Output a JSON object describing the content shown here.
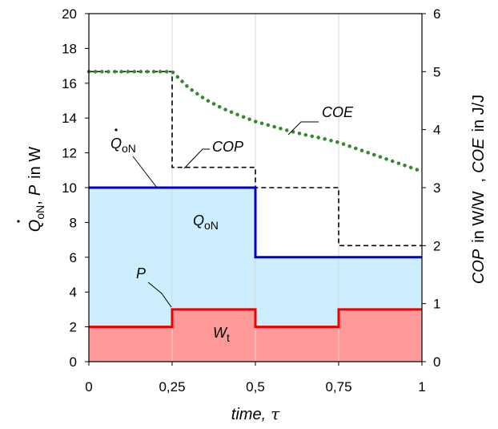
{
  "chart_data": {
    "type": "line",
    "x_label": {
      "text": "time,",
      "symbol": "τ"
    },
    "y_left_label": {
      "qdot": "Q",
      "qdot_sub": "oN",
      "sep": ",",
      "p": "P",
      "unit": "in  W"
    },
    "y_right_label": {
      "cop": "COP",
      "cop_unit": "in W/W",
      "sep": ",",
      "coe": "COE",
      "coe_unit": "in J/J"
    },
    "xlim": [
      0,
      1
    ],
    "ylim_left": [
      0,
      20
    ],
    "ylim_right": [
      0,
      6
    ],
    "x_ticks": [
      {
        "value": 0,
        "label": "0"
      },
      {
        "value": 0.25,
        "label": "0,25"
      },
      {
        "value": 0.5,
        "label": "0,5"
      },
      {
        "value": 0.75,
        "label": "0,75"
      },
      {
        "value": 1,
        "label": "1"
      }
    ],
    "y_left_ticks": [
      "0",
      "2",
      "4",
      "6",
      "8",
      "10",
      "12",
      "14",
      "16",
      "18",
      "20"
    ],
    "y_right_ticks": [
      "0",
      "1",
      "2",
      "3",
      "4",
      "5",
      "6"
    ],
    "series": [
      {
        "name": "Q̇oN",
        "axis": "left",
        "style": "step",
        "color": "#0000cc",
        "x": [
          0,
          0.5,
          0.5,
          1
        ],
        "y": [
          10,
          10,
          6,
          6
        ]
      },
      {
        "name": "P",
        "axis": "left",
        "style": "step",
        "color": "#ee0000",
        "x": [
          0,
          0.25,
          0.25,
          0.5,
          0.5,
          0.75,
          0.75,
          1
        ],
        "y": [
          2,
          2,
          3,
          3,
          2,
          2,
          3,
          3
        ]
      },
      {
        "name": "COP",
        "axis": "right",
        "style": "dashed-step",
        "color": "#000000",
        "x": [
          0,
          0.25,
          0.25,
          0.5,
          0.5,
          0.75,
          0.75,
          1
        ],
        "y": [
          5.0,
          5.0,
          3.35,
          3.35,
          3.0,
          3.0,
          2.0,
          2.0
        ]
      },
      {
        "name": "COE",
        "axis": "right",
        "style": "dotted",
        "color": "#2e8b2e",
        "x": [
          0,
          0.25,
          0.3,
          0.35,
          0.4,
          0.45,
          0.5,
          0.55,
          0.6,
          0.65,
          0.7,
          0.75,
          0.8,
          0.85,
          0.9,
          0.95,
          1.0
        ],
        "y": [
          5.0,
          5.0,
          4.72,
          4.52,
          4.37,
          4.25,
          4.14,
          4.06,
          3.98,
          3.91,
          3.85,
          3.78,
          3.68,
          3.58,
          3.48,
          3.38,
          3.28
        ]
      }
    ],
    "areas": [
      {
        "label": "Q",
        "label_sub": "oN",
        "color": "#cceeff"
      },
      {
        "label": "W",
        "label_sub": "t",
        "color": "#ff9999"
      }
    ],
    "annotations": {
      "coe": "COE",
      "cop": "COP",
      "p": "P",
      "qdot": "Q",
      "qdot_sub": "oN"
    }
  }
}
